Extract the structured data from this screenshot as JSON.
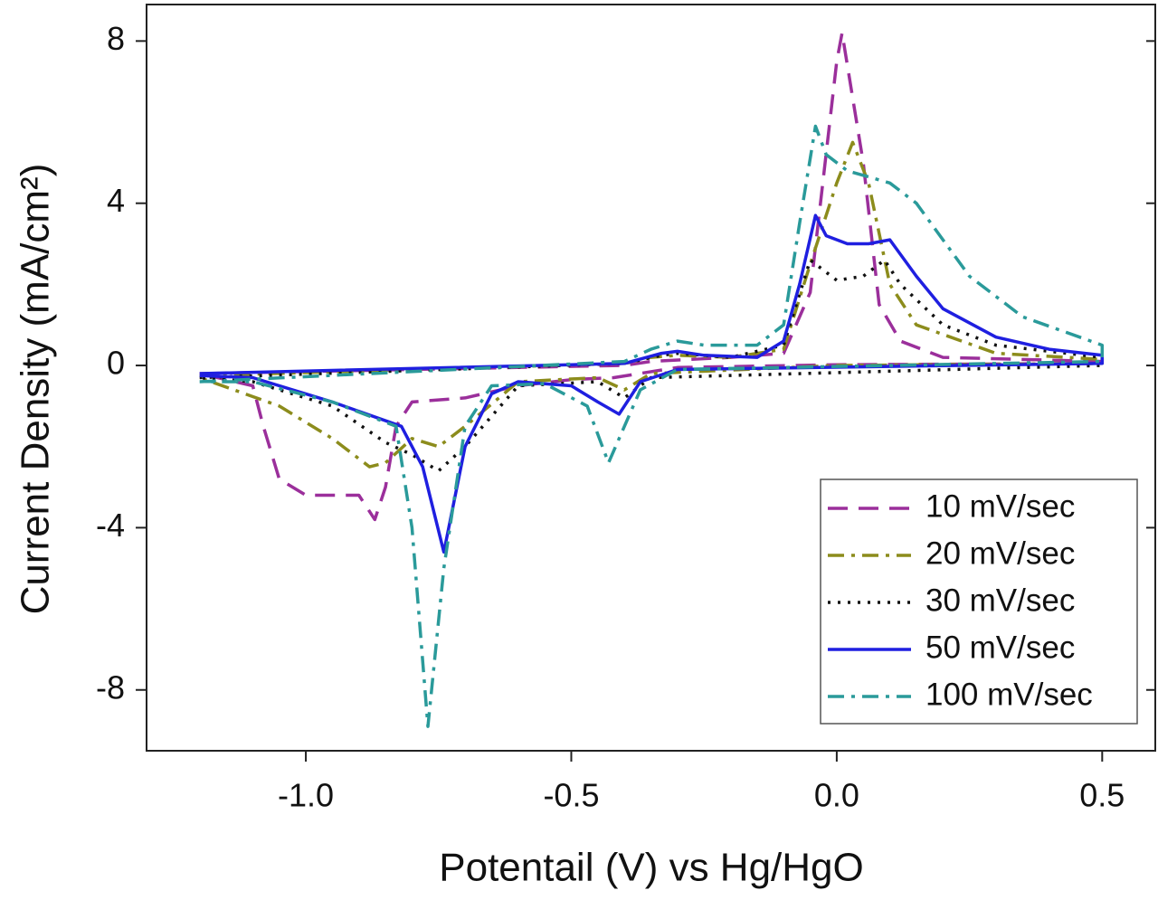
{
  "chart_data": {
    "type": "line",
    "xlabel": "Potentail (V) vs Hg/HgO",
    "ylabel": "Current Density (mA/cm²)",
    "xlim": [
      -1.3,
      0.6
    ],
    "ylim": [
      -9.5,
      8.9
    ],
    "xticks": [
      {
        "value": -1.0,
        "label": "-1.0"
      },
      -0.5,
      {
        "value": 0,
        "label": "0.0"
      },
      0.5
    ],
    "yticks": [
      -8,
      -4,
      0,
      4,
      8
    ],
    "legend": "lower right",
    "series": [
      {
        "name": "10 mV/sec",
        "color": "#9b2f9b",
        "dash": "dashed",
        "x": [
          -1.2,
          -0.8,
          -0.4,
          -0.35,
          -0.2,
          -0.1,
          -0.05,
          0.0,
          0.01,
          0.05,
          0.08,
          0.12,
          0.2,
          0.5,
          0.5,
          0.0,
          -0.3,
          -0.42,
          -0.5,
          -0.6,
          -0.7,
          -0.8,
          -0.83,
          -0.85,
          -0.87,
          -0.9,
          -1.0,
          -1.05,
          -1.08,
          -1.1,
          -1.2
        ],
        "values": [
          -0.2,
          -0.1,
          0.0,
          0.1,
          0.2,
          0.3,
          1.8,
          7.5,
          8.2,
          5.0,
          1.5,
          0.6,
          0.2,
          0.1,
          0.05,
          0.02,
          -0.05,
          -0.3,
          -0.35,
          -0.5,
          -0.8,
          -0.9,
          -1.5,
          -3.0,
          -3.8,
          -3.2,
          -3.2,
          -2.8,
          -1.5,
          -0.5,
          -0.2
        ]
      },
      {
        "name": "20 mV/sec",
        "color": "#8c8c1c",
        "dash": "dashdot",
        "x": [
          -1.2,
          -0.4,
          -0.35,
          -0.3,
          -0.2,
          -0.1,
          -0.05,
          0.0,
          0.03,
          0.06,
          0.1,
          0.15,
          0.3,
          0.5,
          0.5,
          0.0,
          -0.35,
          -0.4,
          -0.45,
          -0.6,
          -0.7,
          -0.75,
          -0.8,
          -0.85,
          -0.88,
          -0.95,
          -1.05,
          -1.2
        ],
        "values": [
          -0.25,
          0.05,
          0.2,
          0.25,
          0.2,
          0.4,
          2.5,
          4.5,
          5.5,
          4.5,
          2.0,
          1.0,
          0.3,
          0.15,
          0.05,
          0.0,
          -0.2,
          -0.6,
          -0.3,
          -0.4,
          -1.5,
          -2.0,
          -1.8,
          -2.4,
          -2.5,
          -1.8,
          -1.0,
          -0.3
        ]
      },
      {
        "name": "30 mV/sec",
        "color": "#111111",
        "dash": "dotted",
        "x": [
          -1.2,
          -0.4,
          -0.33,
          -0.3,
          -0.2,
          -0.1,
          -0.05,
          0.0,
          0.05,
          0.09,
          0.12,
          0.2,
          0.3,
          0.5,
          0.5,
          -0.35,
          -0.4,
          -0.45,
          -0.6,
          -0.7,
          -0.75,
          -0.8,
          -0.85,
          -0.95,
          -1.1,
          -1.2
        ],
        "values": [
          -0.3,
          0.05,
          0.25,
          0.3,
          0.2,
          0.5,
          2.6,
          2.1,
          2.2,
          2.6,
          2.0,
          1.0,
          0.5,
          0.2,
          0.0,
          -0.3,
          -0.8,
          -0.4,
          -0.5,
          -2.0,
          -2.6,
          -2.2,
          -1.9,
          -1.0,
          -0.4,
          -0.3
        ]
      },
      {
        "name": "50 mV/sec",
        "color": "#1f1fe0",
        "dash": "solid",
        "x": [
          -1.2,
          -0.4,
          -0.33,
          -0.3,
          -0.25,
          -0.15,
          -0.1,
          -0.07,
          -0.04,
          -0.02,
          0.02,
          0.06,
          0.1,
          0.15,
          0.2,
          0.3,
          0.4,
          0.5,
          0.5,
          -0.3,
          -0.37,
          -0.41,
          -0.45,
          -0.5,
          -0.6,
          -0.65,
          -0.7,
          -0.74,
          -0.78,
          -0.82,
          -0.95,
          -1.1,
          -1.2
        ],
        "values": [
          -0.2,
          0.05,
          0.3,
          0.35,
          0.25,
          0.2,
          0.6,
          2.0,
          3.7,
          3.2,
          3.0,
          3.0,
          3.1,
          2.2,
          1.4,
          0.7,
          0.4,
          0.25,
          0.05,
          -0.1,
          -0.4,
          -1.2,
          -0.9,
          -0.5,
          -0.4,
          -0.7,
          -2.0,
          -4.6,
          -2.5,
          -1.5,
          -0.9,
          -0.3,
          -0.25
        ]
      },
      {
        "name": "100 mV/sec",
        "color": "#2a9a9a",
        "dash": "dashdot",
        "x": [
          -1.2,
          -0.4,
          -0.35,
          -0.3,
          -0.25,
          -0.15,
          -0.1,
          -0.07,
          -0.04,
          -0.02,
          0.02,
          0.1,
          0.15,
          0.25,
          0.35,
          0.5,
          0.5,
          -0.3,
          -0.37,
          -0.43,
          -0.47,
          -0.55,
          -0.65,
          -0.7,
          -0.74,
          -0.77,
          -0.8,
          -0.83,
          -0.95,
          -1.1,
          -1.2
        ],
        "values": [
          -0.4,
          0.1,
          0.4,
          0.6,
          0.5,
          0.5,
          1.0,
          3.5,
          5.9,
          5.2,
          4.8,
          4.5,
          4.0,
          2.2,
          1.2,
          0.5,
          0.1,
          -0.1,
          -0.6,
          -2.4,
          -1.0,
          -0.45,
          -0.5,
          -1.5,
          -5.0,
          -8.9,
          -4.0,
          -1.5,
          -0.9,
          -0.4,
          -0.4
        ]
      }
    ]
  }
}
